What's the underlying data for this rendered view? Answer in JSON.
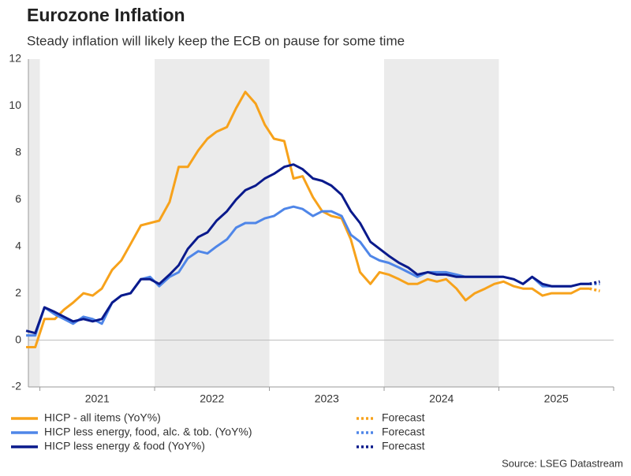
{
  "chart_data": {
    "type": "line",
    "title": "Eurozone Inflation",
    "subtitle": "Steady inflation will likely keep the ECB on pause for some time",
    "source": "Source: LSEG Datastream",
    "x": [
      2020.88,
      2020.96,
      2021.04,
      2021.13,
      2021.21,
      2021.29,
      2021.38,
      2021.46,
      2021.54,
      2021.63,
      2021.71,
      2021.79,
      2021.88,
      2021.96,
      2022.04,
      2022.13,
      2022.21,
      2022.29,
      2022.38,
      2022.46,
      2022.54,
      2022.63,
      2022.71,
      2022.79,
      2022.88,
      2022.96,
      2023.04,
      2023.13,
      2023.21,
      2023.29,
      2023.38,
      2023.46,
      2023.54,
      2023.63,
      2023.71,
      2023.79,
      2023.88,
      2023.96,
      2024.04,
      2024.13,
      2024.21,
      2024.29,
      2024.38,
      2024.46,
      2024.54,
      2024.63,
      2024.71,
      2024.79,
      2024.88,
      2024.96,
      2025.04,
      2025.13,
      2025.21,
      2025.29,
      2025.38,
      2025.46,
      2025.54,
      2025.63,
      2025.71,
      2025.79,
      2025.88
    ],
    "series": [
      {
        "name": "HICP - all items (YoY%)",
        "color": "#f7a21b",
        "style": "solid",
        "values": [
          -0.3,
          -0.3,
          0.9,
          0.9,
          1.3,
          1.6,
          2.0,
          1.9,
          2.2,
          3.0,
          3.4,
          4.1,
          4.9,
          5.0,
          5.1,
          5.9,
          7.4,
          7.4,
          8.1,
          8.6,
          8.9,
          9.1,
          9.9,
          10.6,
          10.1,
          9.2,
          8.6,
          8.5,
          6.9,
          7.0,
          6.1,
          5.5,
          5.3,
          5.2,
          4.3,
          2.9,
          2.4,
          2.9,
          2.8,
          2.6,
          2.4,
          2.4,
          2.6,
          2.5,
          2.6,
          2.2,
          1.7,
          2.0,
          2.2,
          2.4,
          2.5,
          2.3,
          2.2,
          2.2,
          1.9,
          2.0,
          2.0,
          2.0,
          2.2,
          2.2,
          null
        ]
      },
      {
        "name": "HICP less energy, food, alc. & tob. (YoY%)",
        "color": "#4f86e8",
        "style": "solid",
        "values": [
          0.2,
          0.2,
          1.4,
          1.1,
          0.9,
          0.7,
          1.0,
          0.9,
          0.7,
          1.6,
          1.9,
          2.0,
          2.6,
          2.7,
          2.3,
          2.7,
          2.9,
          3.5,
          3.8,
          3.7,
          4.0,
          4.3,
          4.8,
          5.0,
          5.0,
          5.2,
          5.3,
          5.6,
          5.7,
          5.6,
          5.3,
          5.5,
          5.5,
          5.3,
          4.5,
          4.2,
          3.6,
          3.4,
          3.3,
          3.1,
          2.9,
          2.7,
          2.9,
          2.9,
          2.9,
          2.8,
          2.7,
          2.7,
          2.7,
          2.7,
          2.7,
          2.6,
          2.4,
          2.7,
          2.3,
          2.3,
          2.3,
          2.3,
          2.4,
          2.4,
          null
        ]
      },
      {
        "name": "HICP less energy & food (YoY%)",
        "color": "#0a1a8c",
        "style": "solid",
        "values": [
          0.4,
          0.3,
          1.4,
          1.2,
          1.0,
          0.8,
          0.9,
          0.8,
          0.9,
          1.6,
          1.9,
          2.0,
          2.6,
          2.6,
          2.4,
          2.8,
          3.2,
          3.9,
          4.4,
          4.6,
          5.1,
          5.5,
          6.0,
          6.4,
          6.6,
          6.9,
          7.1,
          7.4,
          7.5,
          7.3,
          6.9,
          6.8,
          6.6,
          6.2,
          5.5,
          5.0,
          4.2,
          3.9,
          3.6,
          3.3,
          3.1,
          2.8,
          2.9,
          2.8,
          2.8,
          2.7,
          2.7,
          2.7,
          2.7,
          2.7,
          2.7,
          2.6,
          2.4,
          2.7,
          2.4,
          2.3,
          2.3,
          2.3,
          2.4,
          2.4,
          null
        ]
      },
      {
        "name": "Forecast",
        "color": "#f7a21b",
        "style": "dotted",
        "values": [
          null,
          null,
          null,
          null,
          null,
          null,
          null,
          null,
          null,
          null,
          null,
          null,
          null,
          null,
          null,
          null,
          null,
          null,
          null,
          null,
          null,
          null,
          null,
          null,
          null,
          null,
          null,
          null,
          null,
          null,
          null,
          null,
          null,
          null,
          null,
          null,
          null,
          null,
          null,
          null,
          null,
          null,
          null,
          null,
          null,
          null,
          null,
          null,
          null,
          null,
          null,
          null,
          null,
          null,
          null,
          null,
          null,
          null,
          null,
          2.2,
          2.1
        ]
      },
      {
        "name": "Forecast",
        "color": "#4f86e8",
        "style": "dotted",
        "values": [
          null,
          null,
          null,
          null,
          null,
          null,
          null,
          null,
          null,
          null,
          null,
          null,
          null,
          null,
          null,
          null,
          null,
          null,
          null,
          null,
          null,
          null,
          null,
          null,
          null,
          null,
          null,
          null,
          null,
          null,
          null,
          null,
          null,
          null,
          null,
          null,
          null,
          null,
          null,
          null,
          null,
          null,
          null,
          null,
          null,
          null,
          null,
          null,
          null,
          null,
          null,
          null,
          null,
          null,
          null,
          null,
          null,
          null,
          null,
          2.4,
          2.4
        ]
      },
      {
        "name": "Forecast",
        "color": "#0a1a8c",
        "style": "dotted",
        "values": [
          null,
          null,
          null,
          null,
          null,
          null,
          null,
          null,
          null,
          null,
          null,
          null,
          null,
          null,
          null,
          null,
          null,
          null,
          null,
          null,
          null,
          null,
          null,
          null,
          null,
          null,
          null,
          null,
          null,
          null,
          null,
          null,
          null,
          null,
          null,
          null,
          null,
          null,
          null,
          null,
          null,
          null,
          null,
          null,
          null,
          null,
          null,
          null,
          null,
          null,
          null,
          null,
          null,
          null,
          null,
          null,
          null,
          null,
          null,
          2.4,
          2.5
        ]
      }
    ],
    "xlim": [
      2020.9,
      2026.0
    ],
    "xticks": [
      {
        "value": 2021.5,
        "label": "2021"
      },
      {
        "value": 2022.5,
        "label": "2022"
      },
      {
        "value": 2023.5,
        "label": "2023"
      },
      {
        "value": 2024.5,
        "label": "2024"
      },
      {
        "value": 2025.5,
        "label": "2025"
      }
    ],
    "ylim": [
      -2,
      12
    ],
    "yticks": [
      -2,
      0,
      2,
      4,
      6,
      8,
      10,
      12
    ],
    "grid": false,
    "shading": true,
    "legend": "bottom"
  }
}
